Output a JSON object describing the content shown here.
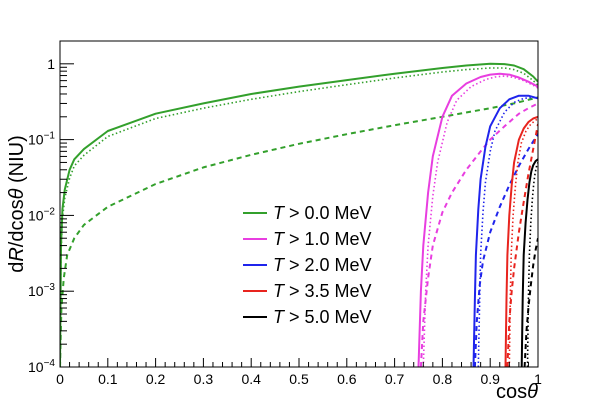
{
  "chart_data": {
    "type": "line",
    "xlabel": "cosθ",
    "ylabel": "dR/dcosθ (NIU)",
    "xlim": [
      0,
      1
    ],
    "ylim": [
      0.0001,
      2
    ],
    "y_scale": "log",
    "grid": false,
    "legend_position": "bottom-right",
    "x_ticks": [
      {
        "v": 0,
        "label": "0"
      },
      {
        "v": 0.1,
        "label": "0.1"
      },
      {
        "v": 0.2,
        "label": "0.2"
      },
      {
        "v": 0.3,
        "label": "0.3"
      },
      {
        "v": 0.4,
        "label": "0.4"
      },
      {
        "v": 0.5,
        "label": "0.5"
      },
      {
        "v": 0.6,
        "label": "0.6"
      },
      {
        "v": 0.7,
        "label": "0.7"
      },
      {
        "v": 0.8,
        "label": "0.8"
      },
      {
        "v": 0.9,
        "label": "0.9"
      },
      {
        "v": 1,
        "label": "1"
      }
    ],
    "y_ticks": [
      {
        "v": 0.0001,
        "base": "10",
        "exp": "−4"
      },
      {
        "v": 0.001,
        "base": "10",
        "exp": "−3"
      },
      {
        "v": 0.01,
        "base": "10",
        "exp": "−2"
      },
      {
        "v": 0.1,
        "base": "10",
        "exp": "−1"
      },
      {
        "v": 1,
        "base": "1",
        "exp": ""
      }
    ],
    "series": [
      {
        "name": "T > 0.0 MeV",
        "color": "#33a02c",
        "lines": [
          {
            "style": "solid",
            "x": [
              0,
              0.002,
              0.005,
              0.01,
              0.02,
              0.03,
              0.05,
              0.1,
              0.2,
              0.3,
              0.4,
              0.5,
              0.6,
              0.7,
              0.8,
              0.85,
              0.9,
              0.93,
              0.95,
              0.97,
              0.99,
              1.0
            ],
            "y": [
              0.0001,
              0.004,
              0.012,
              0.022,
              0.04,
              0.055,
              0.075,
              0.13,
              0.22,
              0.3,
              0.4,
              0.5,
              0.61,
              0.74,
              0.88,
              0.95,
              1.0,
              0.99,
              0.95,
              0.85,
              0.68,
              0.58
            ]
          },
          {
            "style": "dotted",
            "x": [
              0,
              0.002,
              0.005,
              0.01,
              0.02,
              0.03,
              0.05,
              0.1,
              0.2,
              0.3,
              0.4,
              0.5,
              0.6,
              0.7,
              0.8,
              0.85,
              0.9,
              0.93,
              0.95,
              0.97,
              0.99,
              1.0
            ],
            "y": [
              0.0001,
              0.003,
              0.009,
              0.017,
              0.031,
              0.045,
              0.062,
              0.11,
              0.19,
              0.26,
              0.34,
              0.43,
              0.53,
              0.65,
              0.78,
              0.84,
              0.88,
              0.88,
              0.84,
              0.75,
              0.6,
              0.52
            ]
          },
          {
            "style": "dashed",
            "x": [
              0,
              0.003,
              0.008,
              0.015,
              0.03,
              0.05,
              0.1,
              0.2,
              0.3,
              0.4,
              0.5,
              0.6,
              0.7,
              0.8,
              0.9,
              0.95,
              1.0
            ],
            "y": [
              0.0001,
              0.0006,
              0.0015,
              0.003,
              0.005,
              0.0075,
              0.013,
              0.026,
              0.043,
              0.063,
              0.088,
              0.118,
              0.155,
              0.2,
              0.26,
              0.3,
              0.36
            ]
          }
        ]
      },
      {
        "name": "T > 1.0 MeV",
        "color": "#e83ee0",
        "lines": [
          {
            "style": "solid",
            "x": [
              0.75,
              0.755,
              0.76,
              0.77,
              0.78,
              0.8,
              0.82,
              0.85,
              0.88,
              0.9,
              0.92,
              0.94,
              0.96,
              0.98,
              1.0
            ],
            "y": [
              0.0001,
              0.001,
              0.004,
              0.02,
              0.06,
              0.2,
              0.38,
              0.55,
              0.67,
              0.72,
              0.74,
              0.72,
              0.66,
              0.58,
              0.5
            ]
          },
          {
            "style": "dotted",
            "x": [
              0.76,
              0.765,
              0.77,
              0.78,
              0.79,
              0.81,
              0.83,
              0.86,
              0.89,
              0.91,
              0.93,
              0.95,
              0.97,
              0.99,
              1.0
            ],
            "y": [
              0.0001,
              0.001,
              0.004,
              0.018,
              0.05,
              0.17,
              0.33,
              0.5,
              0.62,
              0.67,
              0.69,
              0.66,
              0.6,
              0.52,
              0.48
            ]
          },
          {
            "style": "dashed",
            "x": [
              0.755,
              0.76,
              0.77,
              0.78,
              0.8,
              0.82,
              0.85,
              0.88,
              0.9,
              0.93,
              0.96,
              0.98,
              1.0
            ],
            "y": [
              0.0001,
              0.0004,
              0.0015,
              0.004,
              0.011,
              0.02,
              0.04,
              0.07,
              0.1,
              0.15,
              0.22,
              0.26,
              0.3
            ]
          }
        ]
      },
      {
        "name": "T > 2.0 MeV",
        "color": "#1f24ec",
        "lines": [
          {
            "style": "solid",
            "x": [
              0.865,
              0.868,
              0.87,
              0.875,
              0.88,
              0.89,
              0.9,
              0.92,
              0.94,
              0.96,
              0.98,
              1.0
            ],
            "y": [
              0.0001,
              0.0008,
              0.003,
              0.012,
              0.03,
              0.08,
              0.15,
              0.26,
              0.34,
              0.38,
              0.38,
              0.35
            ]
          },
          {
            "style": "dotted",
            "x": [
              0.875,
              0.878,
              0.88,
              0.885,
              0.89,
              0.9,
              0.91,
              0.93,
              0.95,
              0.97,
              0.99,
              1.0
            ],
            "y": [
              0.0001,
              0.0008,
              0.003,
              0.011,
              0.027,
              0.07,
              0.13,
              0.23,
              0.31,
              0.35,
              0.36,
              0.35
            ]
          },
          {
            "style": "dashed",
            "x": [
              0.868,
              0.872,
              0.878,
              0.885,
              0.9,
              0.92,
              0.94,
              0.96,
              0.98,
              1.0
            ],
            "y": [
              0.0001,
              0.0004,
              0.0012,
              0.0025,
              0.006,
              0.013,
              0.025,
              0.045,
              0.075,
              0.12
            ]
          }
        ]
      },
      {
        "name": "T > 3.5 MeV",
        "color": "#e8241e",
        "lines": [
          {
            "style": "solid",
            "x": [
              0.932,
              0.934,
              0.936,
              0.94,
              0.945,
              0.95,
              0.96,
              0.97,
              0.98,
              0.99,
              1.0
            ],
            "y": [
              0.0001,
              0.0008,
              0.003,
              0.01,
              0.025,
              0.05,
              0.1,
              0.14,
              0.17,
              0.19,
              0.2
            ]
          },
          {
            "style": "dotted",
            "x": [
              0.94,
              0.942,
              0.944,
              0.948,
              0.953,
              0.958,
              0.965,
              0.975,
              0.985,
              0.995,
              1.0
            ],
            "y": [
              0.0001,
              0.0008,
              0.003,
              0.01,
              0.025,
              0.05,
              0.09,
              0.13,
              0.16,
              0.18,
              0.19
            ]
          },
          {
            "style": "dashed",
            "x": [
              0.936,
              0.94,
              0.945,
              0.95,
              0.96,
              0.97,
              0.98,
              0.99,
              1.0
            ],
            "y": [
              0.0001,
              0.0004,
              0.001,
              0.002,
              0.006,
              0.015,
              0.035,
              0.075,
              0.16
            ]
          }
        ]
      },
      {
        "name": "T > 5.0 MeV",
        "color": "#000000",
        "lines": [
          {
            "style": "solid",
            "x": [
              0.966,
              0.968,
              0.97,
              0.974,
              0.978,
              0.982,
              0.986,
              0.99,
              0.995,
              1.0
            ],
            "y": [
              0.0001,
              0.0008,
              0.003,
              0.008,
              0.016,
              0.027,
              0.038,
              0.046,
              0.052,
              0.055
            ]
          },
          {
            "style": "dotted",
            "x": [
              0.978,
              0.98,
              0.982,
              0.985,
              0.988,
              0.991,
              0.994,
              0.997,
              1.0
            ],
            "y": [
              0.0001,
              0.0008,
              0.003,
              0.008,
              0.016,
              0.026,
              0.036,
              0.045,
              0.05
            ]
          },
          {
            "style": "dashed",
            "x": [
              0.972,
              0.976,
              0.98,
              0.985,
              0.99,
              0.995,
              1.0
            ],
            "y": [
              0.0001,
              0.0003,
              0.0006,
              0.0012,
              0.0022,
              0.0035,
              0.005
            ]
          }
        ]
      }
    ]
  }
}
